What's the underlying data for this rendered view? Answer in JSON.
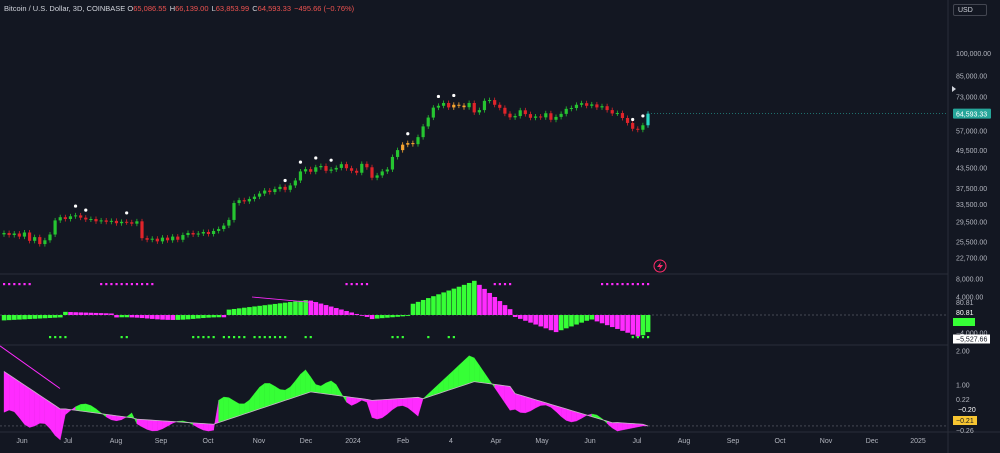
{
  "header": {
    "symbol": "Bitcoin / U.S. Dollar, 3D, COINBASE",
    "o_label": "O",
    "open": "65,086.55",
    "h_label": "H",
    "high": "66,139.00",
    "l_label": "L",
    "low": "63,853.99",
    "c_label": "C",
    "close": "64,593.33",
    "change": "−495.66 (−0.76%)"
  },
  "currency_button": "USD",
  "colors": {
    "background": "#131722",
    "up": "#26c531",
    "down": "#e0242a",
    "accent_cyan": "#26d4c0",
    "magenta": "#ff2bff",
    "green": "#36ff36",
    "orange": "#f7a531",
    "price_badge": "#26a69a"
  },
  "chart_data": [
    {
      "type": "candlestick",
      "title": "Bitcoin / U.S. Dollar, 3D, COINBASE",
      "y_scale": "log",
      "ylim": [
        20500,
        135000
      ],
      "y_ticks": [
        "100,000.00",
        "85,000.00",
        "73,000.00",
        "65,000.00",
        "57,000.00",
        "49,500.00",
        "43,500.00",
        "37,500.00",
        "33,500.00",
        "29,500.00",
        "25,500.00",
        "22,700.00"
      ],
      "current_price_label": "64,593.33",
      "x_ticks": [
        "Jun",
        "Jul",
        "Aug",
        "Sep",
        "Oct",
        "Nov",
        "Dec",
        "2024",
        "Feb",
        "4",
        "Apr",
        "May",
        "Jun",
        "Jul",
        "Aug",
        "Sep",
        "Oct",
        "Nov",
        "Dec",
        "2025"
      ],
      "series_close": [
        27200,
        26800,
        27100,
        26500,
        27300,
        25700,
        26400,
        25100,
        25800,
        26900,
        29800,
        30500,
        30100,
        30700,
        30900,
        30400,
        30000,
        30100,
        29600,
        29800,
        29500,
        29700,
        29200,
        29500,
        29400,
        29100,
        29600,
        26200,
        25900,
        26100,
        25600,
        26300,
        25800,
        26500,
        25900,
        26800,
        27200,
        26900,
        27100,
        27400,
        27000,
        27600,
        28000,
        28700,
        29900,
        33800,
        34500,
        34200,
        34800,
        35400,
        36200,
        37000,
        36600,
        37400,
        38000,
        37200,
        38400,
        39800,
        42500,
        43200,
        42400,
        43800,
        44200,
        42700,
        43100,
        43600,
        44800,
        43500,
        42700,
        42100,
        44900,
        43800,
        40600,
        41300,
        42500,
        43100,
        47200,
        49600,
        51600,
        52200,
        51800,
        54500,
        58900,
        62800,
        67500,
        68400,
        69800,
        67600,
        68900,
        68500,
        67700,
        69800,
        65200,
        66300,
        70900,
        71300,
        68900,
        67400,
        64600,
        62900,
        63500,
        66200,
        64400,
        62700,
        63300,
        62900,
        64800,
        61800,
        63100,
        64500,
        66900,
        67300,
        68900,
        69700,
        68400,
        69100,
        67600,
        68200,
        66300,
        64700,
        64900,
        62600,
        60400,
        57900,
        57500,
        59400,
        64593
      ],
      "series_candle_colors": "green/red/orange/cyan by trend",
      "markers": "white dots above selected candles"
    },
    {
      "type": "histogram",
      "y_ticks": [
        "8,000.00",
        "4,000.00",
        "80.81",
        "80.81",
        "−4,000.00",
        "−5,527.66"
      ],
      "labels": [
        "80.81",
        "−5,527.66"
      ],
      "note": "green/magenta histogram with green and magenta dot markers"
    },
    {
      "type": "area",
      "y_ticks": [
        "2.00",
        "1.00",
        "0.22",
        "−0.20",
        "−0.21",
        "−0.26"
      ],
      "labels": [
        "0.22",
        "−0.20",
        "−0.21",
        "−0.26"
      ],
      "reference_level": -0.2,
      "note": "green/magenta filled oscillator against a signal line"
    }
  ]
}
